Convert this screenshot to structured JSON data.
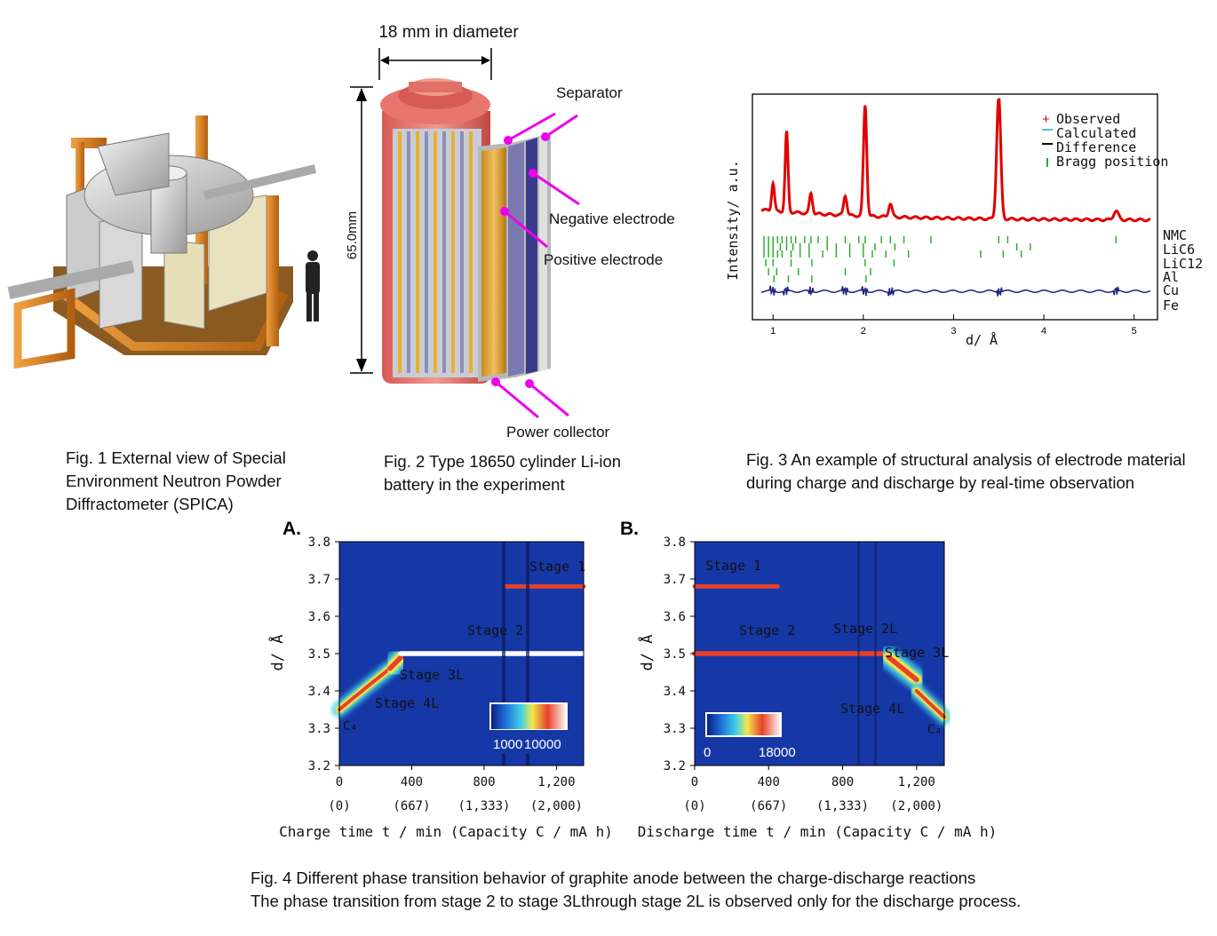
{
  "fig1": {
    "caption": [
      "Fig. 1 External view of Special",
      "Environment Neutron Powder",
      "Diffractometer (SPICA)"
    ]
  },
  "fig2": {
    "diameter_label": "18 mm in diameter",
    "height_label": "65.0mm",
    "labels": {
      "separator": "Separator",
      "negative": "Negative electrode",
      "positive": "Positive electrode",
      "collector": "Power collector"
    },
    "caption": [
      "Fig. 2 Type 18650 cylinder Li-ion",
      "battery in the experiment"
    ]
  },
  "fig3": {
    "ylabel": "Intensity/ a.u.",
    "xlabel": "d/ Å",
    "legend": [
      "Observed",
      "Calculated",
      "Difference",
      "Bragg position"
    ],
    "phases": [
      "NMC",
      "LiC6",
      "LiC12",
      "Al",
      "Cu",
      "Fe"
    ],
    "caption": [
      "Fig. 3 An example of structural analysis of electrode material",
      "during charge and discharge by real-time observation"
    ],
    "colors": {
      "observed": "#e00000",
      "calculated": "#5fb8d8",
      "difference": "#1a237e",
      "bragg": "#22aa22"
    }
  },
  "fig4": {
    "caption": [
      "Fig. 4 Different phase transition behavior of graphite anode between the charge-discharge reactions",
      "The phase transition from stage 2 to stage 3Lthrough stage 2L is observed only for the discharge process."
    ],
    "panelA": {
      "letter": "A.",
      "xlabel": "Charge time t / min (Capacity C / mA h)",
      "ylabel": "d/ Å",
      "colorbar_min": "1000",
      "colorbar_max": "10000",
      "annotations": [
        "Stage 1",
        "Stage 2",
        "Stage 3L",
        "Stage 4L",
        "C₄"
      ]
    },
    "panelB": {
      "letter": "B.",
      "xlabel": "Discharge time t / min (Capacity C / mA h)",
      "ylabel": "d/ Å",
      "colorbar_min": "0",
      "colorbar_max": "18000",
      "annotations": [
        "Stage 1",
        "Stage 2",
        "Stage 2L",
        "Stage 3L",
        "Stage 4L",
        "C₄"
      ]
    },
    "yticks": [
      "3.8",
      "3.7",
      "3.6",
      "3.5",
      "3.4",
      "3.3",
      "3.2"
    ],
    "xticks": [
      "0",
      "400",
      "800",
      "1,200"
    ],
    "xticks_capacity": [
      "(0)",
      "(667)",
      "(1,333)",
      "(2,000)"
    ]
  },
  "chart_data": [
    {
      "type": "scatter",
      "title": "",
      "xlabel": "d/ Å",
      "ylabel": "Intensity/ a.u.",
      "xlim": [
        0.85,
        5.2
      ],
      "x_ticks": [
        1,
        2,
        3,
        4,
        5
      ],
      "series": [
        {
          "name": "Observed",
          "peaks_d": [
            1.0,
            1.15,
            1.42,
            1.8,
            2.02,
            2.3,
            3.5,
            4.8
          ],
          "peaks_rel_intensity": [
            0.25,
            0.72,
            0.18,
            0.18,
            1.0,
            0.12,
            1.1,
            0.08
          ]
        },
        {
          "name": "Calculated"
        },
        {
          "name": "Difference"
        },
        {
          "name": "Bragg position"
        }
      ],
      "legend": "top-right",
      "grid": false
    },
    {
      "type": "heatmap",
      "title": "A.",
      "xlabel": "Charge time t / min (Capacity C / mA h)",
      "ylabel": "d/ Å",
      "xlim": [
        0,
        1350
      ],
      "ylim": [
        3.2,
        3.8
      ],
      "colorbar": [
        1000,
        10000
      ],
      "ridges": [
        {
          "name": "Stage 4L",
          "points": [
            [
              0,
              3.35
            ],
            [
              150,
              3.41
            ],
            [
              280,
              3.46
            ]
          ]
        },
        {
          "name": "Stage 3L",
          "points": [
            [
              280,
              3.46
            ],
            [
              340,
              3.49
            ]
          ]
        },
        {
          "name": "Stage 2",
          "points": [
            [
              340,
              3.5
            ],
            [
              1350,
              3.5
            ]
          ]
        },
        {
          "name": "Stage 1",
          "points": [
            [
              920,
              3.68
            ],
            [
              1350,
              3.68
            ]
          ]
        }
      ]
    },
    {
      "type": "heatmap",
      "title": "B.",
      "xlabel": "Discharge time t / min (Capacity C / mA h)",
      "ylabel": "d/ Å",
      "xlim": [
        0,
        1350
      ],
      "ylim": [
        3.2,
        3.8
      ],
      "colorbar": [
        0,
        18000
      ],
      "ridges": [
        {
          "name": "Stage 1",
          "points": [
            [
              0,
              3.68
            ],
            [
              450,
              3.68
            ]
          ]
        },
        {
          "name": "Stage 2",
          "points": [
            [
              0,
              3.5
            ],
            [
              850,
              3.5
            ]
          ]
        },
        {
          "name": "Stage 2L",
          "points": [
            [
              850,
              3.5
            ],
            [
              1050,
              3.5
            ]
          ]
        },
        {
          "name": "Stage 3L",
          "points": [
            [
              1050,
              3.49
            ],
            [
              1200,
              3.43
            ]
          ]
        },
        {
          "name": "Stage 4L",
          "points": [
            [
              1200,
              3.4
            ],
            [
              1350,
              3.33
            ]
          ]
        }
      ]
    }
  ]
}
